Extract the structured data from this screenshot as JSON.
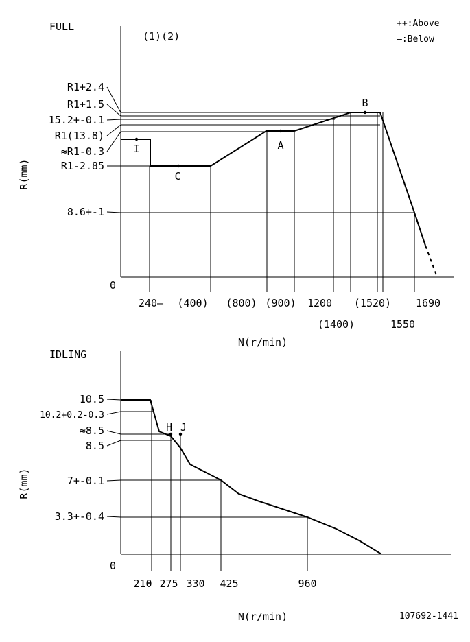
{
  "chart_data": [
    {
      "type": "line",
      "title": "FULL",
      "subtitle": "(1)(2)",
      "xlabel": "N(r/min)",
      "ylabel": "R(mm)",
      "legend": {
        "above": "++:Above",
        "below": "—:Below"
      },
      "y_origin_label": "0",
      "y_tick_labels": [
        "R1+2.4",
        "R1+1.5",
        "15.2+-0.1",
        "R1(13.8)",
        "≈R1-0.3",
        "R1-2.85",
        "8.6+-1"
      ],
      "x_tick_labels": [
        "240—",
        "(400)",
        "(800)",
        "(900)",
        "1200",
        "(1400)",
        "(1520)",
        "1550",
        "1690"
      ],
      "points": [
        {
          "label": "I"
        },
        {
          "label": "C"
        },
        {
          "label": "A"
        },
        {
          "label": "B"
        }
      ],
      "series": [
        {
          "x": [
            0,
            240,
            240,
            400,
            800,
            900,
            1400,
            1550,
            1690
          ],
          "y": [
            13.5,
            13.5,
            10.95,
            10.95,
            13.8,
            13.8,
            15.3,
            15.3,
            8.6
          ]
        }
      ],
      "extension": {
        "x": [
          1690,
          1800
        ],
        "y": [
          8.6,
          2.5
        ],
        "style": "dashed"
      }
    },
    {
      "type": "line",
      "title": "IDLING",
      "xlabel": "N(r/min)",
      "ylabel": "R(mm)",
      "y_origin_label": "0",
      "y_tick_labels": [
        "10.5",
        "10.2+0.2-0.3",
        "≈8.5",
        "8.5",
        "7+-0.1",
        "3.3+-0.4"
      ],
      "x_tick_labels": [
        "210",
        "275",
        "330",
        "425",
        "960"
      ],
      "points": [
        {
          "label": "H"
        },
        {
          "label": "J"
        }
      ],
      "series": [
        {
          "x": [
            0,
            210,
            260,
            330,
            425,
            960,
            1520
          ],
          "y": [
            10.5,
            10.5,
            8.5,
            8.0,
            7.0,
            3.3,
            0
          ]
        }
      ]
    }
  ],
  "footer": {
    "code": "107692-1441"
  }
}
